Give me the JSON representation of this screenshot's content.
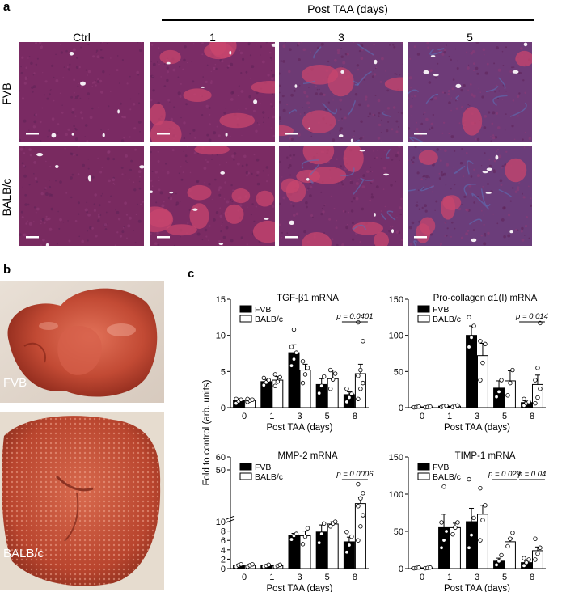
{
  "panel_a": {
    "letter": "a",
    "post_label": "Post TAA (days)",
    "columns": [
      "Ctrl",
      "1",
      "3",
      "5"
    ],
    "rows": [
      "FVB",
      "BALB/c"
    ]
  },
  "panel_b": {
    "letter": "b",
    "photo_labels": [
      "FVB",
      "BALB/c"
    ]
  },
  "panel_c": {
    "letter": "c"
  },
  "chart_data": [
    {
      "type": "bar",
      "title": "TGF-β1 mRNA",
      "xlabel": "Post TAA (days)",
      "ylabel": "Fold to control (arb. units)",
      "categories": [
        "0",
        "1",
        "3",
        "5",
        "8"
      ],
      "ylim": [
        0,
        15
      ],
      "yticks": [
        0,
        5,
        10,
        15
      ],
      "series": [
        {
          "name": "FVB",
          "color": "#000000",
          "values": [
            1.0,
            3.6,
            7.6,
            3.2,
            1.8
          ],
          "errors": [
            0.2,
            0.3,
            1.1,
            0.8,
            0.4
          ]
        },
        {
          "name": "BALB/c",
          "color": "#ffffff",
          "values": [
            1.0,
            3.8,
            5.2,
            4.0,
            4.7
          ],
          "errors": [
            0.2,
            0.5,
            0.8,
            1.2,
            1.3
          ]
        }
      ],
      "points": [
        [
          [
            0.6,
            0.9,
            1.1,
            1.2
          ],
          [
            3.1,
            3.5,
            3.8,
            4.1
          ],
          [
            5.8,
            6.7,
            7.6,
            8.4,
            10.8
          ],
          [
            2.0,
            3.0,
            4.3
          ],
          [
            0.8,
            1.4,
            1.9,
            2.6
          ]
        ],
        [
          [
            0.8,
            1.0,
            1.1,
            1.2
          ],
          [
            3.0,
            3.6,
            4.2,
            4.6
          ],
          [
            3.4,
            4.6,
            5.5,
            6.4
          ],
          [
            2.6,
            3.9,
            4.7,
            5.2
          ],
          [
            1.2,
            2.6,
            3.4,
            4.4,
            5.2,
            9.2,
            11.8
          ]
        ]
      ],
      "significance": [
        {
          "label": "p = 0.0401",
          "category": "8"
        }
      ]
    },
    {
      "type": "bar",
      "title": "Pro-collagen α1(I) mRNA",
      "xlabel": "Post TAA (days)",
      "ylabel": "",
      "categories": [
        "0",
        "1",
        "3",
        "5",
        "8"
      ],
      "ylim": [
        0,
        150
      ],
      "yticks": [
        0,
        50,
        100,
        150
      ],
      "series": [
        {
          "name": "FVB",
          "color": "#000000",
          "values": [
            1,
            2,
            100,
            27,
            7
          ],
          "errors": [
            0.5,
            0.5,
            13,
            10,
            2
          ]
        },
        {
          "name": "BALB/c",
          "color": "#ffffff",
          "values": [
            1,
            2,
            72,
            37,
            32
          ],
          "errors": [
            0.5,
            0.5,
            17,
            14,
            13
          ]
        }
      ],
      "points": [
        [
          [
            0.5,
            1,
            1.5
          ],
          [
            1,
            2,
            2.5
          ],
          [
            84,
            97,
            113,
            125
          ],
          [
            15,
            22,
            38
          ],
          [
            3,
            6,
            8,
            12
          ]
        ],
        [
          [
            0.5,
            1,
            1.5
          ],
          [
            1,
            2,
            3
          ],
          [
            38,
            62,
            88,
            92
          ],
          [
            17,
            34,
            52
          ],
          [
            6,
            14,
            26,
            38,
            55,
            117
          ]
        ]
      ],
      "significance": [
        {
          "label": "p = 0.014",
          "category": "8"
        }
      ]
    },
    {
      "type": "bar",
      "title": "MMP-2 mRNA",
      "xlabel": "Post TAA (days)",
      "ylabel": "",
      "categories": [
        "0",
        "1",
        "3",
        "5",
        "8"
      ],
      "ylim": [
        0,
        60
      ],
      "axis_break": [
        10,
        50
      ],
      "yticks": [
        0,
        2,
        4,
        6,
        8,
        10,
        50,
        60
      ],
      "series": [
        {
          "name": "FVB",
          "color": "#000000",
          "values": [
            0.7,
            0.6,
            7.0,
            7.8,
            5.7
          ],
          "errors": [
            0.2,
            0.1,
            0.5,
            1.5,
            1.0
          ]
        },
        {
          "name": "BALB/c",
          "color": "#ffffff",
          "values": [
            0.7,
            0.6,
            7.0,
            9.5,
            24.0
          ],
          "errors": [
            0.2,
            0.1,
            1.0,
            0.5,
            4.7
          ]
        }
      ],
      "points": [
        [
          [
            0.4,
            0.7,
            0.9
          ],
          [
            0.4,
            0.6,
            0.8
          ],
          [
            6.2,
            7.0,
            7.4
          ],
          [
            5.5,
            7.4,
            9.6
          ],
          [
            3.5,
            5.0,
            6.8,
            7.8
          ]
        ],
        [
          [
            0.4,
            0.7,
            0.9
          ],
          [
            0.4,
            0.6,
            0.8
          ],
          [
            5.2,
            6.8,
            8.6
          ],
          [
            9.0,
            9.6,
            10.0
          ],
          [
            6.0,
            9.0,
            15.0,
            22.0,
            28.0,
            32.0,
            39.0
          ]
        ]
      ],
      "significance": [
        {
          "label": "p = 0.0006",
          "category": "8"
        }
      ]
    },
    {
      "type": "bar",
      "title": "TIMP-1 mRNA",
      "xlabel": "Post TAA (days)",
      "ylabel": "",
      "categories": [
        "0",
        "1",
        "3",
        "5",
        "8"
      ],
      "ylim": [
        0,
        150
      ],
      "yticks": [
        0,
        50,
        100,
        150
      ],
      "series": [
        {
          "name": "FVB",
          "color": "#000000",
          "values": [
            1,
            55,
            63,
            10,
            8
          ],
          "errors": [
            0.5,
            18,
            18,
            4,
            2
          ]
        },
        {
          "name": "BALB/c",
          "color": "#ffffff",
          "values": [
            1,
            55,
            73,
            36,
            24
          ],
          "errors": [
            0.5,
            6,
            12,
            5,
            5
          ]
        }
      ],
      "points": [
        [
          [
            0.5,
            1,
            1.5
          ],
          [
            28,
            38,
            50,
            62,
            110
          ],
          [
            28,
            45,
            68,
            120
          ],
          [
            5,
            10,
            18
          ],
          [
            4,
            8,
            12,
            14
          ]
        ],
        [
          [
            0.5,
            1,
            1.5
          ],
          [
            46,
            55,
            62
          ],
          [
            38,
            65,
            85,
            108
          ],
          [
            30,
            40,
            48
          ],
          [
            12,
            20,
            28,
            40
          ]
        ]
      ],
      "significance": [
        {
          "label": "p = 0.029",
          "category": "5"
        },
        {
          "label": "p = 0.04",
          "category": "8"
        }
      ]
    }
  ]
}
